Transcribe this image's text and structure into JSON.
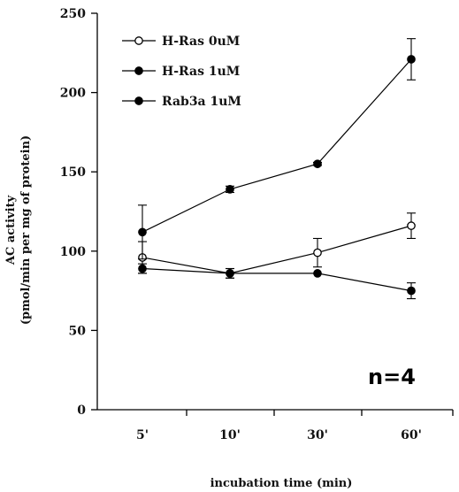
{
  "chart_data": {
    "type": "line",
    "categories": [
      "5'",
      "10'",
      "30'",
      "60'"
    ],
    "ylabel_line1": "AC activity",
    "ylabel_line2": "(pmol/min per mg of protein)",
    "xlabel": "incubation time (min)",
    "ylim": [
      0,
      250
    ],
    "yticks": [
      0,
      50,
      100,
      150,
      200,
      250
    ],
    "grid": false,
    "legend_placement": "top-left",
    "annotation": "n=4",
    "series": [
      {
        "name": "H-Ras 0uM",
        "marker": "open-circle",
        "values": [
          96,
          86,
          99,
          116
        ],
        "errors": [
          10,
          3,
          9,
          8
        ]
      },
      {
        "name": "H-Ras 1uM",
        "marker": "filled-circle",
        "values": [
          112,
          139,
          155,
          221
        ],
        "errors": [
          17,
          2,
          1,
          13
        ]
      },
      {
        "name": "Rab3a 1uM",
        "marker": "filled-circle",
        "values": [
          89,
          86,
          86,
          75
        ],
        "errors": [
          3,
          3,
          0,
          5
        ]
      }
    ]
  }
}
